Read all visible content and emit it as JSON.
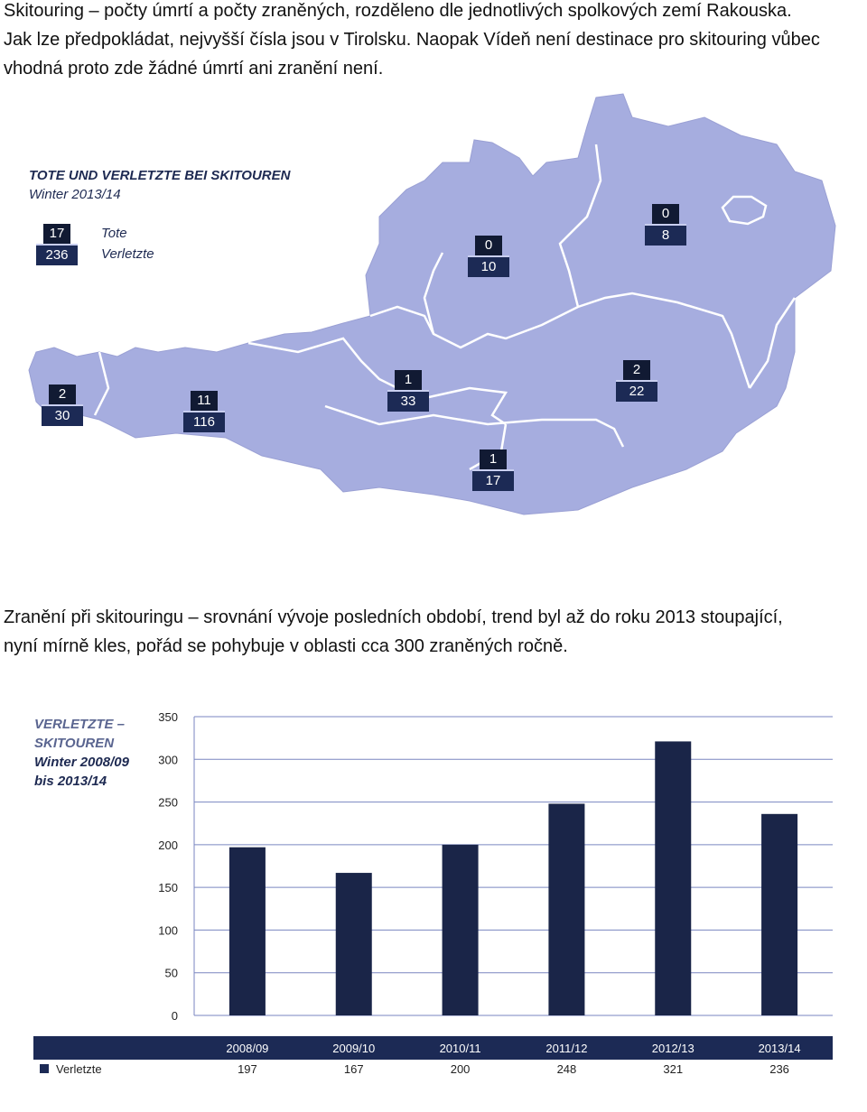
{
  "intro": {
    "line1": "Skitouring – počty úmrtí a počty zraněných, rozděleno dle jednotlivých spolkových zemí Rakouska.",
    "line2": "Jak lze předpokládat,  nejvyšší čísla jsou v Tirolsku. Naopak Vídeň není destinace pro skitouring vůbec",
    "line3": "vhodná proto zde žádné úmrtí ani zranění není."
  },
  "map": {
    "title": "TOTE UND VERLETZTE BEI SKITOUREN",
    "subtitle": "Winter 2013/14",
    "legend": {
      "deaths_value": "17",
      "injured_value": "236",
      "deaths_label": "Tote",
      "injured_label": "Verletzte"
    },
    "regions": [
      {
        "deaths": "2",
        "injured": "30"
      },
      {
        "deaths": "11",
        "injured": "116"
      },
      {
        "deaths": "1",
        "injured": "33"
      },
      {
        "deaths": "0",
        "injured": "10"
      },
      {
        "deaths": "0",
        "injured": "8"
      },
      {
        "deaths": "2",
        "injured": "22"
      },
      {
        "deaths": "1",
        "injured": "17"
      }
    ],
    "colors": {
      "land": "#a6addf",
      "border": "#ffffff",
      "badge_dark": "#111a33",
      "badge": "#1c2a55"
    }
  },
  "outro": {
    "line1": "Zranění při skitouringu – srovnání vývoje posledních období, trend byl až do roku 2013 stoupající,",
    "line2": "nyní mírně kles, pořád se pohybuje v oblasti cca 300 zraněných ročně."
  },
  "chart_data": {
    "type": "bar",
    "title": "VERLETZTE –",
    "title_line2": "SKITOUREN",
    "subtitle": "Winter 2008/09",
    "subtitle_line2": "bis 2013/14",
    "categories": [
      "2008/09",
      "2009/10",
      "2010/11",
      "2011/12",
      "2012/13",
      "2013/14"
    ],
    "series": [
      {
        "name": "Verletzte",
        "values": [
          197,
          167,
          200,
          248,
          321,
          236
        ]
      }
    ],
    "ylim": [
      0,
      350
    ],
    "yticks": [
      0,
      50,
      100,
      150,
      200,
      250,
      300,
      350
    ],
    "grid": true,
    "colors": {
      "bar": "#1a2548",
      "header": "#1c2a55",
      "grid": "#7a86c0"
    }
  }
}
